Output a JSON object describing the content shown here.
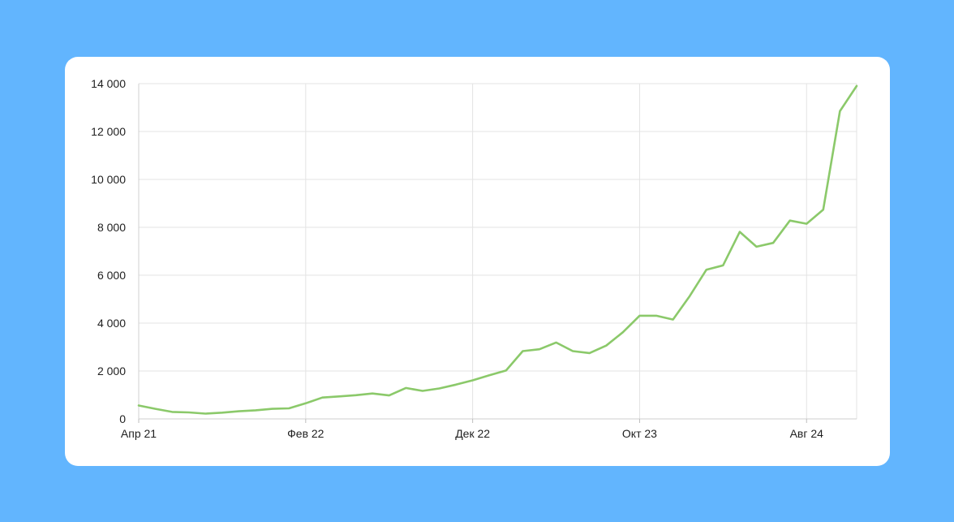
{
  "chart_data": {
    "type": "line",
    "title": "",
    "xlabel": "",
    "ylabel": "",
    "ylim": [
      0,
      14000
    ],
    "y_ticks": [
      0,
      2000,
      4000,
      6000,
      8000,
      10000,
      12000,
      14000
    ],
    "y_tick_labels": [
      "0",
      "2 000",
      "4 000",
      "6 000",
      "8 000",
      "10 000",
      "12 000",
      "14 000"
    ],
    "x_ticks": [
      {
        "index": 0,
        "label": "Апр 21"
      },
      {
        "index": 10,
        "label": "Фев 22"
      },
      {
        "index": 20,
        "label": "Дек 22"
      },
      {
        "index": 30,
        "label": "Окт 23"
      },
      {
        "index": 40,
        "label": "Авг 24"
      }
    ],
    "grid": true,
    "line_color": "#8bc96a",
    "series": [
      {
        "values": [
          560,
          420,
          290,
          270,
          220,
          260,
          320,
          360,
          420,
          440,
          650,
          890,
          940,
          990,
          1060,
          980,
          1290,
          1170,
          1270,
          1430,
          1610,
          1820,
          2020,
          2830,
          2910,
          3190,
          2830,
          2750,
          3060,
          3620,
          4310,
          4310,
          4150,
          5130,
          6230,
          6410,
          7810,
          7190,
          7350,
          8280,
          8150,
          8740,
          12850,
          13900
        ]
      }
    ]
  }
}
